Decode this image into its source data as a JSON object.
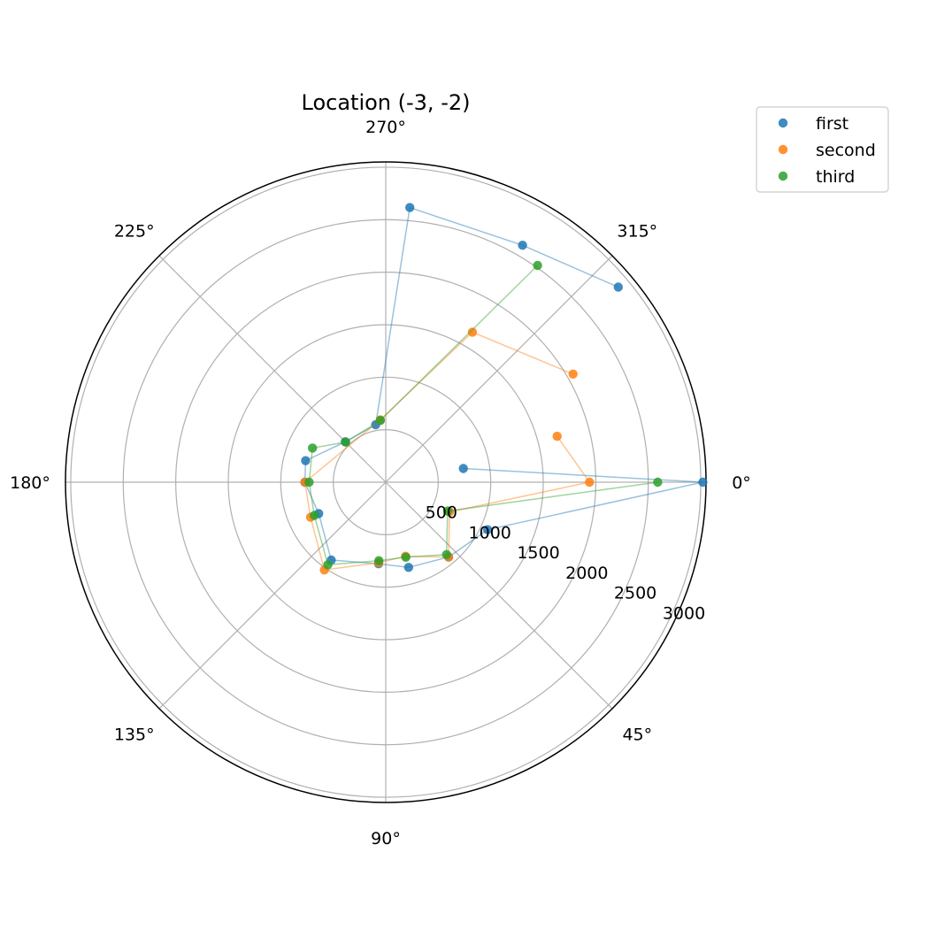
{
  "chart_data": {
    "type": "scatter",
    "subtype": "polar",
    "title": "Location (-3, -2)",
    "theta_direction": "clockwise",
    "theta_zero": "east",
    "r_max": 3050,
    "r_ticks": [
      500,
      1000,
      1500,
      2000,
      2500,
      3000
    ],
    "r_tick_labels": [
      "500",
      "1000",
      "1500",
      "2000",
      "2500",
      "3000"
    ],
    "theta_ticks": [
      0,
      45,
      90,
      135,
      180,
      225,
      270,
      315
    ],
    "theta_tick_labels": [
      "0°",
      "45°",
      "90°",
      "135°",
      "180°",
      "225°",
      "270°",
      "315°"
    ],
    "grid": true,
    "legend": {
      "position": "upper-right-outside",
      "entries": [
        "first",
        "second",
        "third"
      ]
    },
    "colors": {
      "first": "#1f77b4",
      "second": "#ff7f0e",
      "third": "#2ca02c"
    },
    "series": [
      {
        "name": "first",
        "color": "#1f77b4",
        "points": [
          {
            "theta": 350,
            "r": 750
          },
          {
            "theta": 0,
            "r": 3020
          },
          {
            "theta": 25,
            "r": 1070
          },
          {
            "theta": 50,
            "r": 930
          },
          {
            "theta": 75,
            "r": 840
          },
          {
            "theta": 95,
            "r": 780
          },
          {
            "theta": 125,
            "r": 905
          },
          {
            "theta": 155,
            "r": 705
          },
          {
            "theta": 180,
            "r": 770
          },
          {
            "theta": 195,
            "r": 790
          },
          {
            "theta": 225,
            "r": 545
          },
          {
            "theta": 260,
            "r": 555
          },
          {
            "theta": 275,
            "r": 2625
          },
          {
            "theta": 300,
            "r": 2605
          },
          {
            "theta": 320,
            "r": 2890
          }
        ]
      },
      {
        "name": "second",
        "color": "#ff7f0e",
        "points": [
          {
            "theta": 345,
            "r": 1690
          },
          {
            "theta": 0,
            "r": 1940
          },
          {
            "theta": 25,
            "r": 670
          },
          {
            "theta": 50,
            "r": 930
          },
          {
            "theta": 75,
            "r": 730
          },
          {
            "theta": 95,
            "r": 770
          },
          {
            "theta": 125,
            "r": 1020
          },
          {
            "theta": 155,
            "r": 790
          },
          {
            "theta": 180,
            "r": 770
          },
          {
            "theta": 265,
            "r": 595
          },
          {
            "theta": 300,
            "r": 1650
          },
          {
            "theta": 330,
            "r": 2060
          }
        ]
      },
      {
        "name": "third",
        "color": "#2ca02c",
        "points": [
          {
            "theta": 0,
            "r": 2590
          },
          {
            "theta": 25,
            "r": 650
          },
          {
            "theta": 50,
            "r": 900
          },
          {
            "theta": 75,
            "r": 740
          },
          {
            "theta": 95,
            "r": 750
          },
          {
            "theta": 125,
            "r": 960
          },
          {
            "theta": 155,
            "r": 750
          },
          {
            "theta": 180,
            "r": 730
          },
          {
            "theta": 205,
            "r": 770
          },
          {
            "theta": 225,
            "r": 540
          },
          {
            "theta": 265,
            "r": 590
          },
          {
            "theta": 305,
            "r": 2520
          }
        ]
      }
    ]
  }
}
